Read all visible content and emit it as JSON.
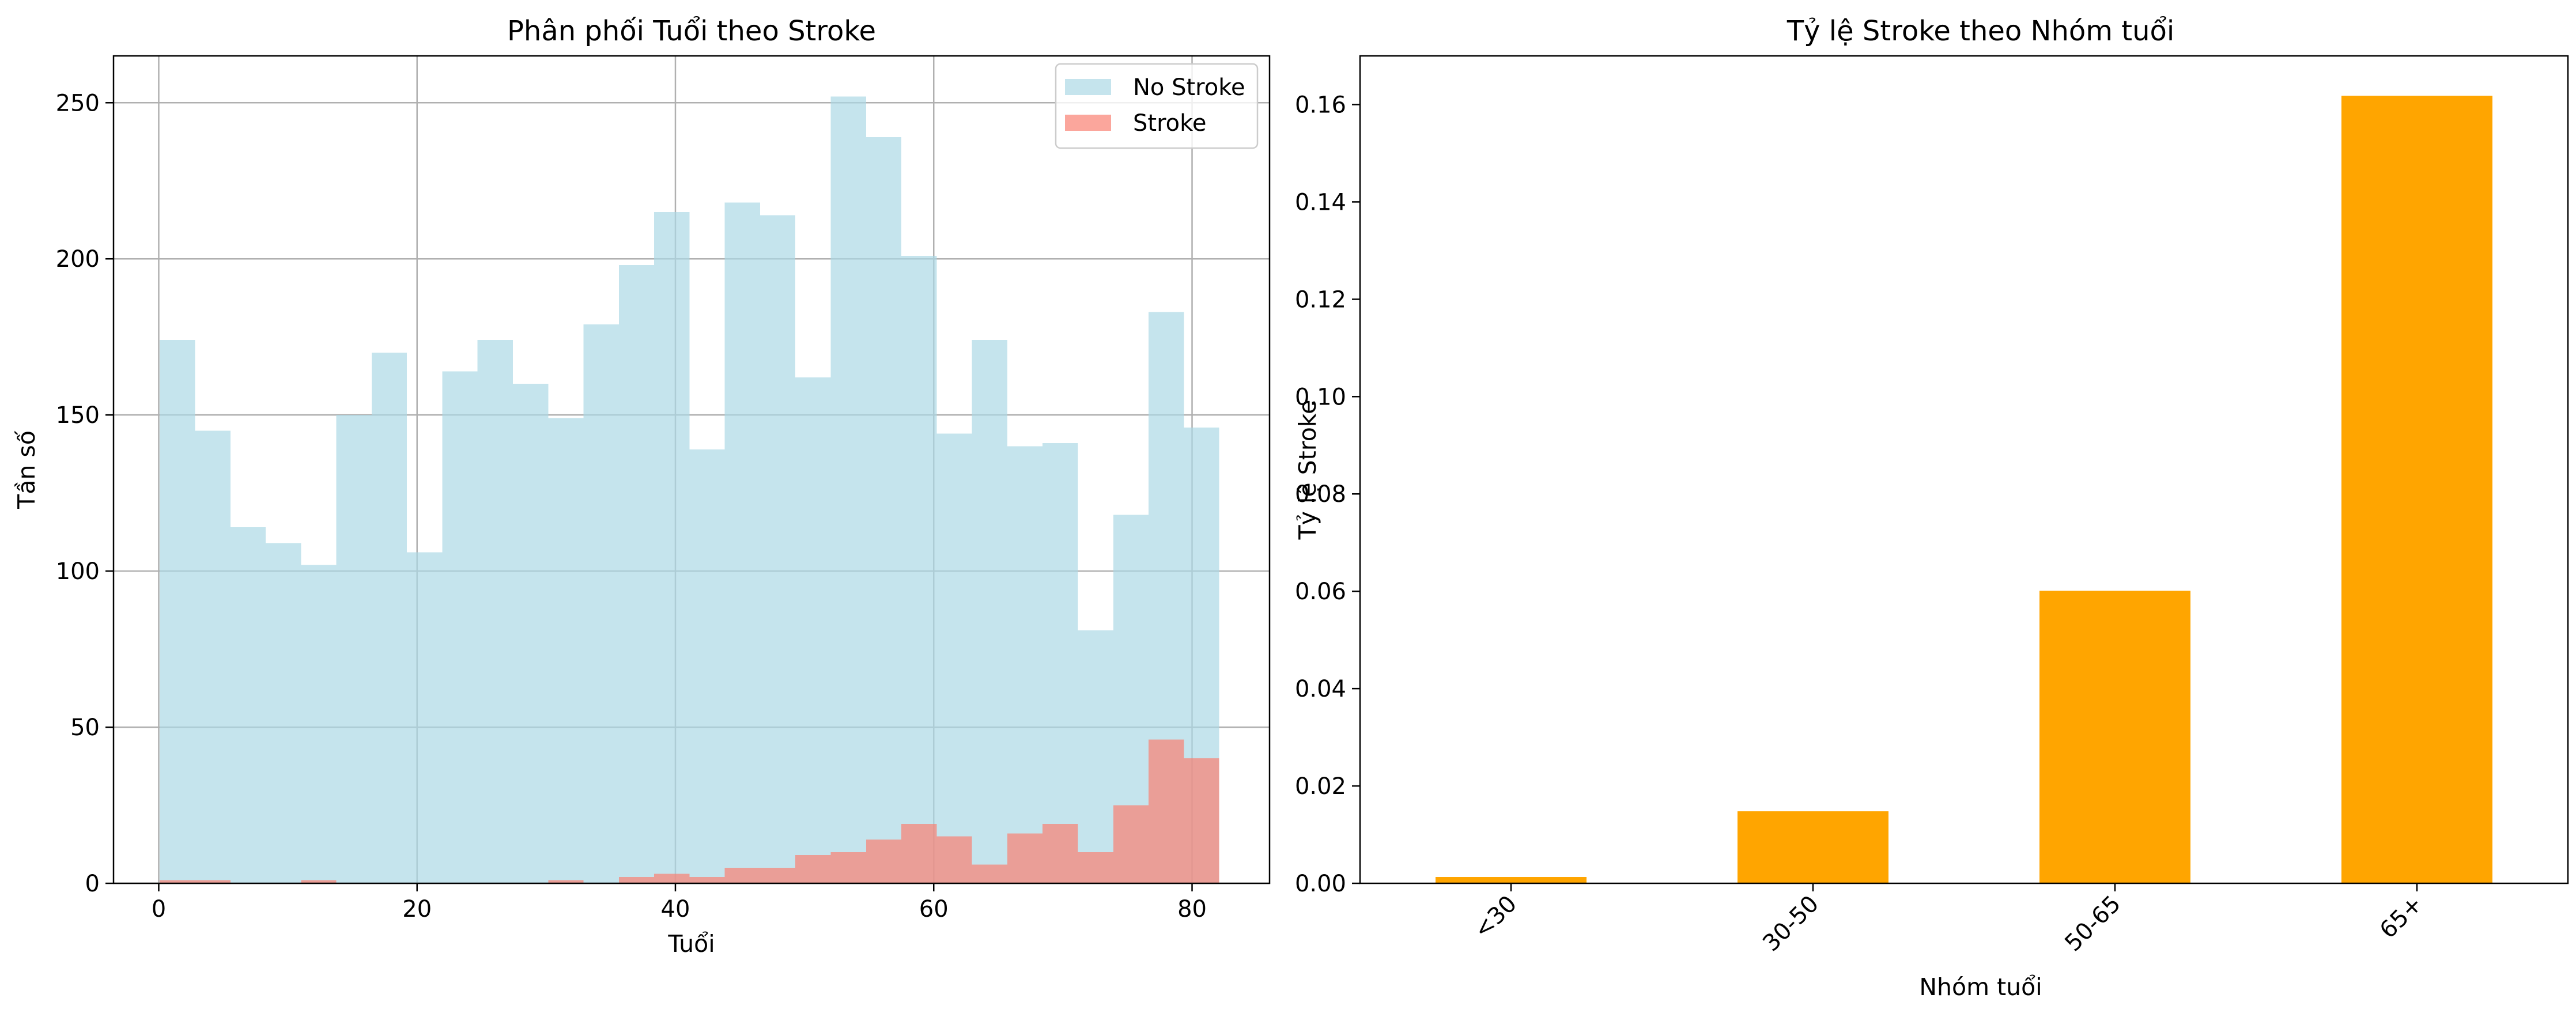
{
  "colors": {
    "no_stroke": "#add8e6",
    "stroke": "#fa8072",
    "age_group_bar": "#ffa500",
    "grid": "#b0b0b0",
    "axes": "#000000",
    "legend_border": "#cccccc"
  },
  "chart_data": [
    {
      "type": "histogram",
      "title": "Phân phối Tuổi theo Stroke",
      "xlabel": "Tuổi",
      "ylabel": "Tần số",
      "xlim": [
        -3.5,
        86
      ],
      "ylim": [
        0,
        265
      ],
      "xticks": [
        0,
        20,
        40,
        60,
        80
      ],
      "xtick_labels": [
        "0",
        "20",
        "40",
        "60",
        "80"
      ],
      "yticks": [
        0,
        50,
        100,
        150,
        200,
        250
      ],
      "ytick_labels": [
        "0",
        "50",
        "100",
        "150",
        "200",
        "250"
      ],
      "grid": true,
      "legend": "top-right",
      "bin_edges": [
        0.08,
        2.814,
        5.548,
        8.282,
        11.016,
        13.75,
        16.484,
        19.218,
        21.952,
        24.686,
        27.42,
        30.154,
        32.888,
        35.622,
        38.356,
        41.09,
        43.824,
        46.558,
        49.292,
        52.026,
        54.76,
        57.494,
        60.228,
        62.962,
        65.696,
        68.43,
        71.164,
        73.898,
        76.632,
        79.366,
        82.1
      ],
      "series": [
        {
          "name": "No Stroke",
          "color": "#add8e6",
          "alpha": 0.7,
          "counts": [
            174,
            145,
            114,
            109,
            102,
            150,
            170,
            106,
            164,
            174,
            160,
            149,
            179,
            198,
            215,
            139,
            218,
            214,
            162,
            252,
            239,
            201,
            144,
            174,
            140,
            141,
            81,
            118,
            183,
            146
          ]
        },
        {
          "name": "Stroke",
          "color": "#fa8072",
          "alpha": 0.7,
          "counts": [
            1,
            1,
            0,
            0,
            1,
            0,
            0,
            0,
            0,
            0,
            0,
            1,
            0,
            2,
            3,
            2,
            5,
            5,
            9,
            10,
            14,
            19,
            15,
            6,
            16,
            19,
            10,
            25,
            46,
            40
          ]
        }
      ]
    },
    {
      "type": "bar",
      "title": "Tỷ lệ Stroke theo Nhóm tuổi",
      "xlabel": "Nhóm tuổi",
      "ylabel": "Tỷ lệ Stroke",
      "categories": [
        "<30",
        "30-50",
        "50-65",
        "65+"
      ],
      "values": [
        0.0013,
        0.0148,
        0.0601,
        0.1618
      ],
      "ylim": [
        0,
        0.17
      ],
      "yticks": [
        0,
        0.02,
        0.04,
        0.06,
        0.08,
        0.1,
        0.12,
        0.14,
        0.16
      ],
      "ytick_labels": [
        "0.00",
        "0.02",
        "0.04",
        "0.06",
        "0.08",
        "0.10",
        "0.12",
        "0.14",
        "0.16"
      ],
      "xtick_rotation": 45,
      "grid": false,
      "legend": "none",
      "color": "#ffa500"
    }
  ]
}
